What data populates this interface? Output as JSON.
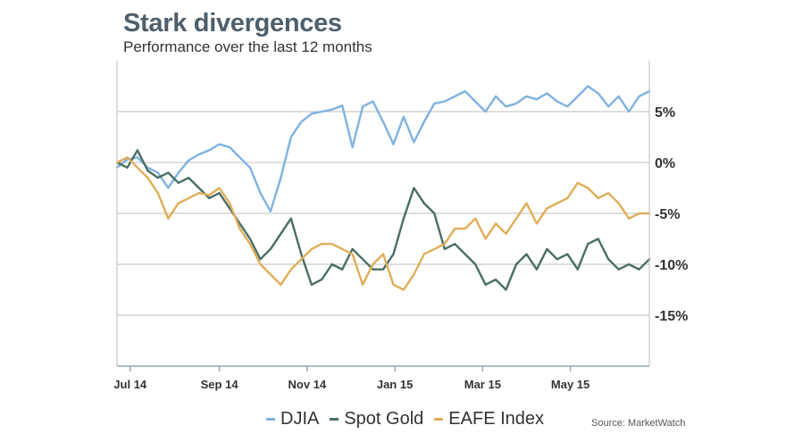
{
  "chart_data": {
    "type": "line",
    "title": "Stark divergences",
    "subtitle": "Performance over the last 12 months",
    "xlabel": "",
    "ylabel": "",
    "source": "Source: MarketWatch",
    "x_start": "2014-07-01",
    "x_end": "2015-06-30",
    "x_ticks": [
      {
        "date": "2014-07-10",
        "label": "Jul 14"
      },
      {
        "date": "2014-09-09",
        "label": "Sep 14"
      },
      {
        "date": "2014-11-08",
        "label": "Nov 14"
      },
      {
        "date": "2015-01-07",
        "label": "Jan 15"
      },
      {
        "date": "2015-03-08",
        "label": "Mar 15"
      },
      {
        "date": "2015-05-07",
        "label": "May 15"
      }
    ],
    "ylim": [
      -20,
      10
    ],
    "y_ticks": [
      {
        "value": 5,
        "label": "5%"
      },
      {
        "value": 0,
        "label": "0%"
      },
      {
        "value": -5,
        "label": "-5%"
      },
      {
        "value": -10,
        "label": "-10%"
      },
      {
        "value": -15,
        "label": "-15%"
      }
    ],
    "grid": true,
    "legend_position": "bottom",
    "series": [
      {
        "name": "DJIA",
        "color": "#7fb2e0",
        "x": [
          "2014-07-01",
          "2014-07-08",
          "2014-07-15",
          "2014-07-22",
          "2014-07-29",
          "2014-08-05",
          "2014-08-12",
          "2014-08-19",
          "2014-08-26",
          "2014-09-02",
          "2014-09-09",
          "2014-09-16",
          "2014-09-23",
          "2014-09-30",
          "2014-10-07",
          "2014-10-14",
          "2014-10-21",
          "2014-10-28",
          "2014-11-04",
          "2014-11-11",
          "2014-11-18",
          "2014-11-25",
          "2014-12-02",
          "2014-12-09",
          "2014-12-16",
          "2014-12-23",
          "2014-12-30",
          "2015-01-06",
          "2015-01-13",
          "2015-01-20",
          "2015-01-27",
          "2015-02-03",
          "2015-02-10",
          "2015-02-17",
          "2015-02-24",
          "2015-03-03",
          "2015-03-10",
          "2015-03-17",
          "2015-03-24",
          "2015-03-31",
          "2015-04-07",
          "2015-04-14",
          "2015-04-21",
          "2015-04-28",
          "2015-05-05",
          "2015-05-12",
          "2015-05-19",
          "2015-05-26",
          "2015-06-02",
          "2015-06-09",
          "2015-06-16",
          "2015-06-23",
          "2015-06-30"
        ],
        "values": [
          -0.5,
          0.3,
          0.5,
          -0.5,
          -1.0,
          -2.5,
          -1.0,
          0.2,
          0.8,
          1.2,
          1.8,
          1.5,
          0.5,
          -0.5,
          -3.0,
          -4.8,
          -1.5,
          2.5,
          4.0,
          4.8,
          5.0,
          5.2,
          5.6,
          1.5,
          5.5,
          6.0,
          4.0,
          1.8,
          4.5,
          2.0,
          4.0,
          5.8,
          6.0,
          6.5,
          7.0,
          6.0,
          5.0,
          6.5,
          5.5,
          5.8,
          6.5,
          6.2,
          6.8,
          6.0,
          5.5,
          6.5,
          7.5,
          6.8,
          5.5,
          6.5,
          5.0,
          6.5,
          7.0
        ]
      },
      {
        "name": "Spot Gold",
        "color": "#4a6e64",
        "x": [
          "2014-07-01",
          "2014-07-08",
          "2014-07-15",
          "2014-07-22",
          "2014-07-29",
          "2014-08-05",
          "2014-08-12",
          "2014-08-19",
          "2014-08-26",
          "2014-09-02",
          "2014-09-09",
          "2014-09-16",
          "2014-09-23",
          "2014-09-30",
          "2014-10-07",
          "2014-10-14",
          "2014-10-21",
          "2014-10-28",
          "2014-11-04",
          "2014-11-11",
          "2014-11-18",
          "2014-11-25",
          "2014-12-02",
          "2014-12-09",
          "2014-12-16",
          "2014-12-23",
          "2014-12-30",
          "2015-01-06",
          "2015-01-13",
          "2015-01-20",
          "2015-01-27",
          "2015-02-03",
          "2015-02-10",
          "2015-02-17",
          "2015-02-24",
          "2015-03-03",
          "2015-03-10",
          "2015-03-17",
          "2015-03-24",
          "2015-03-31",
          "2015-04-07",
          "2015-04-14",
          "2015-04-21",
          "2015-04-28",
          "2015-05-05",
          "2015-05-12",
          "2015-05-19",
          "2015-05-26",
          "2015-06-02",
          "2015-06-09",
          "2015-06-16",
          "2015-06-23",
          "2015-06-30"
        ],
        "values": [
          0.0,
          -0.5,
          1.2,
          -0.8,
          -1.5,
          -1.0,
          -2.0,
          -1.5,
          -2.5,
          -3.5,
          -3.0,
          -4.5,
          -6.0,
          -7.5,
          -9.5,
          -8.5,
          -7.0,
          -5.5,
          -9.0,
          -12.0,
          -11.5,
          -10.0,
          -10.5,
          -8.5,
          -9.5,
          -10.5,
          -10.5,
          -9.0,
          -5.5,
          -2.5,
          -4.0,
          -5.0,
          -8.5,
          -8.0,
          -9.0,
          -10.0,
          -12.0,
          -11.5,
          -12.5,
          -10.0,
          -9.0,
          -10.5,
          -8.5,
          -9.5,
          -9.0,
          -10.5,
          -8.0,
          -7.5,
          -9.5,
          -10.5,
          -10.0,
          -10.5,
          -9.5
        ]
      },
      {
        "name": "EAFE Index",
        "color": "#e0ae58",
        "x": [
          "2014-07-01",
          "2014-07-08",
          "2014-07-15",
          "2014-07-22",
          "2014-07-29",
          "2014-08-05",
          "2014-08-12",
          "2014-08-19",
          "2014-08-26",
          "2014-09-02",
          "2014-09-09",
          "2014-09-16",
          "2014-09-23",
          "2014-09-30",
          "2014-10-07",
          "2014-10-14",
          "2014-10-21",
          "2014-10-28",
          "2014-11-04",
          "2014-11-11",
          "2014-11-18",
          "2014-11-25",
          "2014-12-02",
          "2014-12-09",
          "2014-12-16",
          "2014-12-23",
          "2014-12-30",
          "2015-01-06",
          "2015-01-13",
          "2015-01-20",
          "2015-01-27",
          "2015-02-03",
          "2015-02-10",
          "2015-02-17",
          "2015-02-24",
          "2015-03-03",
          "2015-03-10",
          "2015-03-17",
          "2015-03-24",
          "2015-03-31",
          "2015-04-07",
          "2015-04-14",
          "2015-04-21",
          "2015-04-28",
          "2015-05-05",
          "2015-05-12",
          "2015-05-19",
          "2015-05-26",
          "2015-06-02",
          "2015-06-09",
          "2015-06-16",
          "2015-06-23",
          "2015-06-30"
        ],
        "values": [
          0.0,
          0.5,
          -0.5,
          -1.5,
          -3.0,
          -5.5,
          -4.0,
          -3.5,
          -3.0,
          -3.2,
          -2.5,
          -4.0,
          -6.5,
          -8.0,
          -10.0,
          -11.0,
          -12.0,
          -10.5,
          -9.5,
          -8.5,
          -8.0,
          -8.0,
          -8.5,
          -9.0,
          -12.0,
          -10.0,
          -9.0,
          -12.0,
          -12.5,
          -11.0,
          -9.0,
          -8.5,
          -8.0,
          -6.5,
          -6.5,
          -5.5,
          -7.5,
          -6.0,
          -7.0,
          -5.5,
          -4.0,
          -6.0,
          -4.5,
          -4.0,
          -3.5,
          -2.0,
          -2.5,
          -3.5,
          -3.0,
          -4.0,
          -5.5,
          -5.0,
          -5.0
        ]
      }
    ]
  }
}
